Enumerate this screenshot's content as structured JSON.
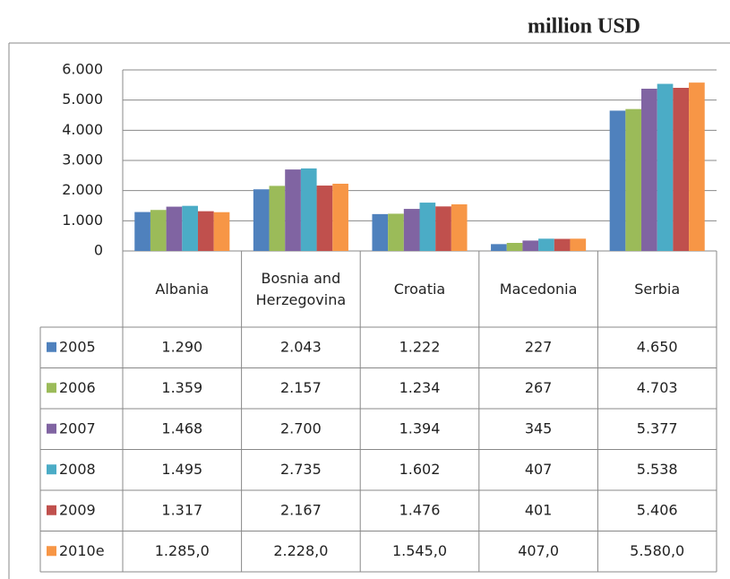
{
  "chart_data": {
    "type": "bar",
    "title": "million USD",
    "categories": [
      "Albania",
      "Bosnia and Herzegovina",
      "Croatia",
      "Macedonia",
      "Serbia"
    ],
    "series": [
      {
        "name": "2005",
        "color": "#4f81bd",
        "values": [
          1290,
          2043,
          1222,
          227,
          4650
        ],
        "value_labels": [
          "1.290",
          "2.043",
          "1.222",
          "227",
          "4.650"
        ]
      },
      {
        "name": "2006",
        "color": "#9bbb59",
        "values": [
          1359,
          2157,
          1234,
          267,
          4703
        ],
        "value_labels": [
          "1.359",
          "2.157",
          "1.234",
          "267",
          "4.703"
        ]
      },
      {
        "name": "2007",
        "color": "#8064a2",
        "values": [
          1468,
          2700,
          1394,
          345,
          5377
        ],
        "value_labels": [
          "1.468",
          "2.700",
          "1.394",
          "345",
          "5.377"
        ]
      },
      {
        "name": "2008",
        "color": "#4bacc6",
        "values": [
          1495,
          2735,
          1602,
          407,
          5538
        ],
        "value_labels": [
          "1.495",
          "2.735",
          "1.602",
          "407",
          "5.538"
        ]
      },
      {
        "name": "2009",
        "color": "#c0504d",
        "values": [
          1317,
          2167,
          1476,
          401,
          5406
        ],
        "value_labels": [
          "1.317",
          "2.167",
          "1.476",
          "401",
          "5.406"
        ]
      },
      {
        "name": "2010e",
        "color": "#f79646",
        "values": [
          1285,
          2228,
          1545,
          407,
          5580
        ],
        "value_labels": [
          "1.285,0",
          "2.228,0",
          "1.545,0",
          "407,0",
          "5.580,0"
        ]
      }
    ],
    "ylim": [
      0,
      6000
    ],
    "yticks": [
      0,
      {
        "value": 1000,
        "label": "1.000"
      },
      {
        "value": 2000,
        "label": "2.000"
      },
      {
        "value": 3000,
        "label": "3.000"
      },
      {
        "value": 4000,
        "label": "4.000"
      },
      {
        "value": 5000,
        "label": "5.000"
      },
      {
        "value": 6000,
        "label": "6.000"
      }
    ],
    "grid": true
  }
}
